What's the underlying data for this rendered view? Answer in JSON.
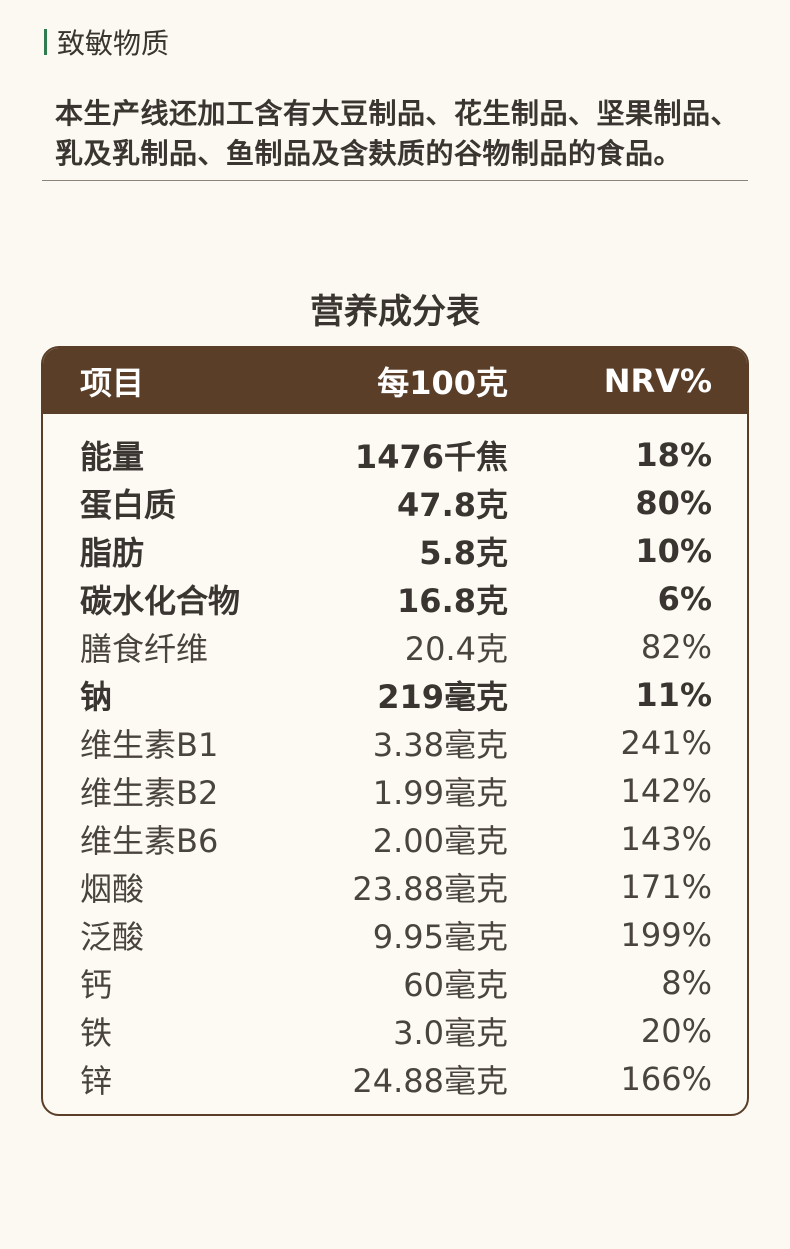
{
  "allergen": {
    "heading": "致敏物质",
    "text": "本生产线还加工含有大豆制品、花生制品、坚果制品、乳及乳制品、鱼制品及含麸质的谷物制品的食品。"
  },
  "table": {
    "title": "营养成分表",
    "headers": {
      "item": "项目",
      "value": "每100克",
      "nrv": "NRV%"
    },
    "rows": [
      {
        "item": "能量",
        "value": "1476千焦",
        "nrv": "18%",
        "bold": true
      },
      {
        "item": "蛋白质",
        "value": "47.8克",
        "nrv": "80%",
        "bold": true
      },
      {
        "item": "脂肪",
        "value": "5.8克",
        "nrv": "10%",
        "bold": true
      },
      {
        "item": "碳水化合物",
        "value": "16.8克",
        "nrv": "6%",
        "bold": true
      },
      {
        "item": "膳食纤维",
        "value": "20.4克",
        "nrv": "82%",
        "bold": false
      },
      {
        "item": "钠",
        "value": "219毫克",
        "nrv": "11%",
        "bold": true
      },
      {
        "item": "维生素B1",
        "value": "3.38毫克",
        "nrv": "241%",
        "bold": false
      },
      {
        "item": "维生素B2",
        "value": "1.99毫克",
        "nrv": "142%",
        "bold": false
      },
      {
        "item": "维生素B6",
        "value": "2.00毫克",
        "nrv": "143%",
        "bold": false
      },
      {
        "item": "烟酸",
        "value": "23.88毫克",
        "nrv": "171%",
        "bold": false
      },
      {
        "item": "泛酸",
        "value": "9.95毫克",
        "nrv": "199%",
        "bold": false
      },
      {
        "item": "钙",
        "value": "60毫克",
        "nrv": "8%",
        "bold": false
      },
      {
        "item": "铁",
        "value": "3.0毫克",
        "nrv": "20%",
        "bold": false
      },
      {
        "item": "锌",
        "value": "24.88毫克",
        "nrv": "166%",
        "bold": false
      }
    ]
  },
  "colors": {
    "accent_green": "#2e7d4f",
    "header_brown": "#5a3e28",
    "background": "#fcf9f2",
    "text": "#3a3530"
  }
}
